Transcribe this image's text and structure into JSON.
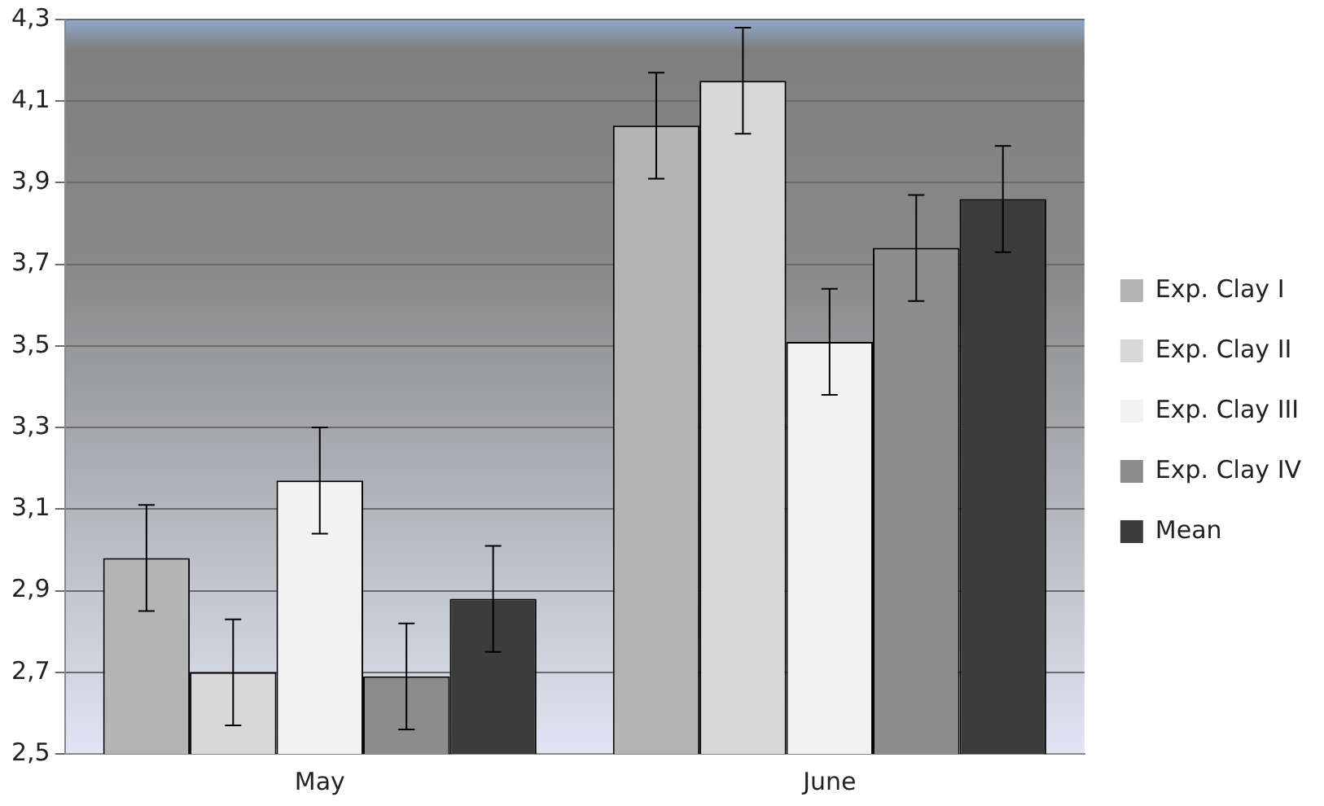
{
  "chart_data": {
    "type": "bar",
    "categories": [
      "May",
      "June"
    ],
    "series": [
      {
        "name": "Exp. Clay I",
        "color": "#b4b4b4",
        "values": [
          2.98,
          4.04
        ],
        "errors": [
          0.13,
          0.13
        ]
      },
      {
        "name": "Exp. Clay II",
        "color": "#d8d8d8",
        "values": [
          2.7,
          4.15
        ],
        "errors": [
          0.13,
          0.13
        ]
      },
      {
        "name": "Exp. Clay III",
        "color": "#f2f2f2",
        "values": [
          3.17,
          3.51
        ],
        "errors": [
          0.13,
          0.13
        ]
      },
      {
        "name": "Exp. Clay IV",
        "color": "#8c8c8c",
        "values": [
          2.69,
          3.74
        ],
        "errors": [
          0.13,
          0.13
        ]
      },
      {
        "name": "Mean",
        "color": "#3c3c3c",
        "values": [
          2.88,
          3.86
        ],
        "errors": [
          0.13,
          0.13
        ]
      }
    ],
    "ylim": [
      2.5,
      4.3
    ],
    "yticks": [
      {
        "value": 2.5,
        "label": "2,5"
      },
      {
        "value": 2.7,
        "label": "2,7"
      },
      {
        "value": 2.9,
        "label": "2,9"
      },
      {
        "value": 3.1,
        "label": "3,1"
      },
      {
        "value": 3.3,
        "label": "3,3"
      },
      {
        "value": 3.5,
        "label": "3,5"
      },
      {
        "value": 3.7,
        "label": "3,7"
      },
      {
        "value": 3.9,
        "label": "3,9"
      },
      {
        "value": 4.1,
        "label": "4,1"
      },
      {
        "value": 4.3,
        "label": "4,3"
      }
    ],
    "grid": "y",
    "legend": "right"
  }
}
